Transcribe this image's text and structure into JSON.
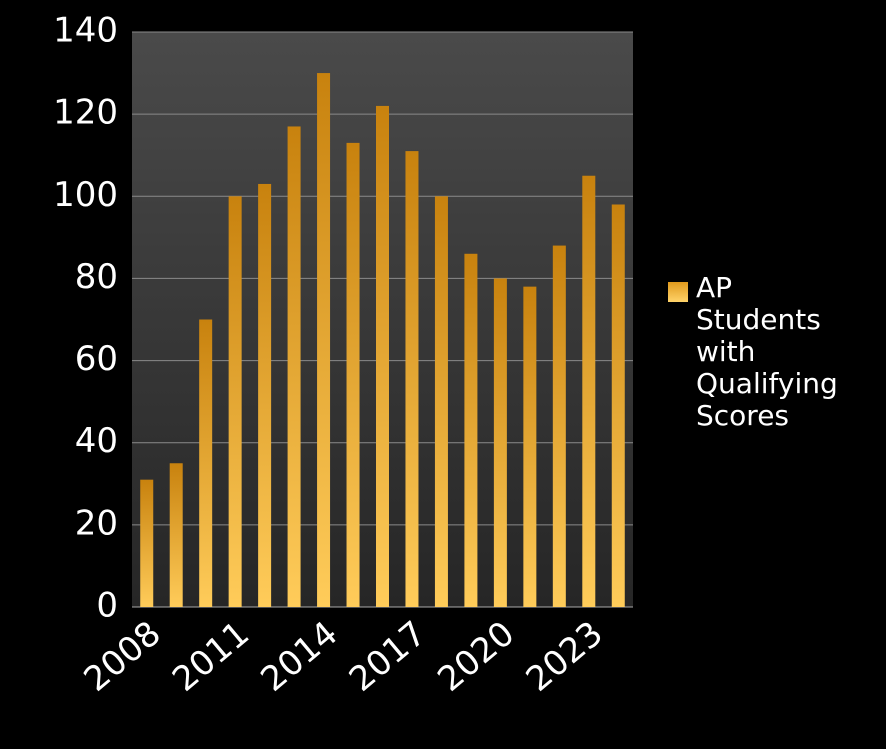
{
  "chart_data": {
    "type": "bar",
    "categories": [
      "2008",
      null,
      null,
      "2011",
      null,
      null,
      "2014",
      null,
      null,
      "2017",
      null,
      null,
      "2020",
      null,
      null,
      "2023",
      null
    ],
    "series": [
      {
        "name": "AP Students with Qualifying Scores",
        "color": "#f0a92a",
        "values": [
          31,
          35,
          70,
          100,
          103,
          117,
          130,
          113,
          122,
          111,
          100,
          86,
          80,
          78,
          88,
          105,
          98
        ]
      }
    ],
    "ylim": [
      0,
      140
    ],
    "yticks": [
      0,
      20,
      40,
      60,
      80,
      100,
      120,
      140
    ],
    "grid": true,
    "legend": "right"
  }
}
